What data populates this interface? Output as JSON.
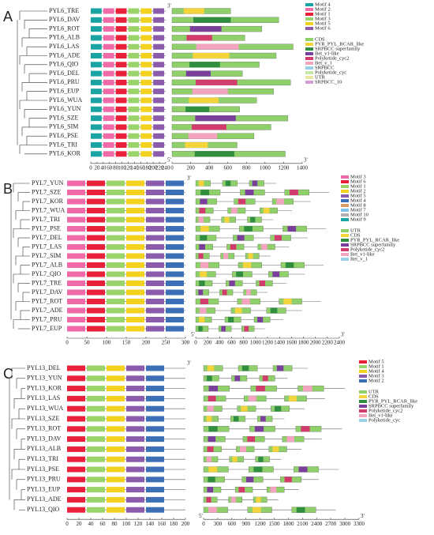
{
  "panels": [
    {
      "label": "A",
      "genes": [
        "PYL6_TRE",
        "PYL6_DAV",
        "PYL6_ROT",
        "PYL6_ALB",
        "PYL6_LAS",
        "PYL6_ADE",
        "PYL6_QIO",
        "PYL6_DEL",
        "PYL6_PRU",
        "PYL6_EUP",
        "PYL6_WUA",
        "PYL6_YUN",
        "PYL6_SZE",
        "PYL6_SIM",
        "PYL6_PSE",
        "PYL6_TRI",
        "PYL6_KOR"
      ],
      "motif_ticks": [
        0,
        20,
        40,
        60,
        80,
        100,
        120,
        140,
        160,
        180,
        200,
        220,
        240
      ],
      "structure_ticks": [
        0,
        200,
        400,
        600,
        800,
        1000,
        1200,
        1400
      ],
      "motif_legend": [
        "Motif 4",
        "Motif 2",
        "Motif 1",
        "Motif 3",
        "Motif 5",
        "Motif 6"
      ],
      "domain_legend": [
        "CDS",
        "PYR_PYL_RCAR_like",
        "SRPBCC superfamily",
        "Bet_v1-like",
        "Polyketide_cyc2",
        "Bet_v_1",
        "SRPBCC",
        "Polyketide_cyc",
        "UTR",
        "SRPBCC_10"
      ],
      "five_prime": "5'",
      "three_prime": "3'"
    },
    {
      "label": "B",
      "genes": [
        "PYL7_YUN",
        "PYL7_SZE",
        "PYL7_KOR",
        "PYL7_WUA",
        "PYL7_TRI",
        "PYL7_PSE",
        "PYL7_DEL",
        "PYL7_LAS",
        "PYL7_SIM",
        "PYL7_ALB",
        "PYL7_QIO",
        "PYL7_TRE",
        "PYL7_DAV",
        "PYL7_ROT",
        "PYL7_ADE",
        "PYL7_PRU",
        "PYL7_EUP"
      ],
      "motif_ticks": [
        0,
        50,
        100,
        150,
        200,
        250,
        300
      ],
      "structure_ticks": [
        0,
        200,
        400,
        600,
        800,
        1000,
        1200,
        1400,
        1600,
        1800,
        2000,
        2200,
        2400
      ],
      "motif_legend": [
        "Motif 3",
        "Motif 6",
        "Motif 1",
        "Motif 2",
        "Motif 5",
        "Motif 4",
        "Motif 8",
        "Motif 7",
        "Motif 10",
        "Motif 9"
      ],
      "domain_legend": [
        "UTR",
        "CDS",
        "PYR_PYL_RCAR_like",
        "SRPBCC superfamily",
        "Polyketide_cyc2",
        "Bet_v1-like",
        "Bet_v_1"
      ],
      "five_prime": "5'",
      "three_prime": "3'"
    },
    {
      "label": "C",
      "genes": [
        "PYL13_DEL",
        "PYL13_YUN",
        "PYL13_KOR",
        "PYL13_LAS",
        "PYL13_WUA",
        "PYL13_SZE",
        "PYL13_ROT",
        "PYL13_DAV",
        "PYL13_ALB",
        "PYL13_TRI",
        "PYL13_PSE",
        "PYL13_PRU",
        "PYL13_EUP",
        "PYL13_ADE",
        "PYL13_QIO"
      ],
      "motif_ticks": [
        0,
        20,
        40,
        60,
        80,
        100,
        120,
        140,
        160,
        180,
        200
      ],
      "structure_ticks": [
        0,
        300,
        600,
        900,
        1200,
        1500,
        1800,
        2100,
        2400,
        2700,
        3000,
        3300
      ],
      "motif_legend": [
        "Motif 5",
        "Motif 1",
        "Motif 4",
        "Motif 3",
        "Motif 2"
      ],
      "domain_legend": [
        "UTR",
        "CDS",
        "PYR_PYL_RCAR_like",
        "SRPBCC superfamily",
        "Polyketide_cyc2",
        "Bet_v1-like",
        "Polyketide_cyc"
      ],
      "five_prime": "5'",
      "three_prime": "3'"
    }
  ]
}
